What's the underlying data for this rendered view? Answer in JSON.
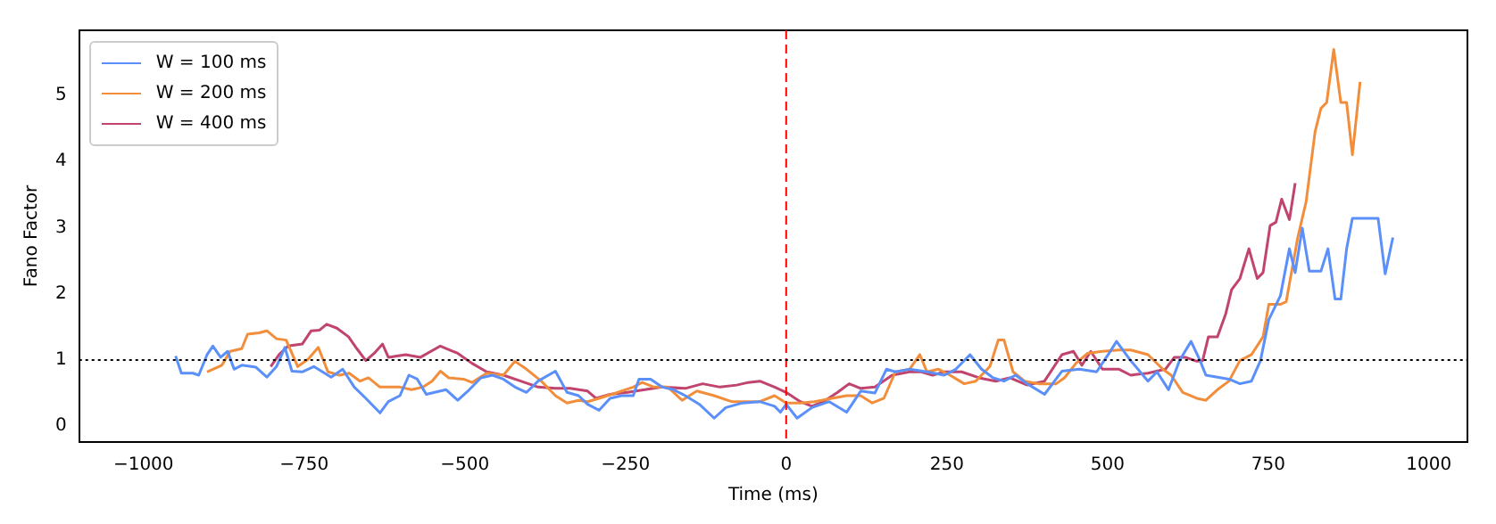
{
  "chart_data": {
    "type": "line",
    "xlabel": "Time (ms)",
    "ylabel": "Fano Factor",
    "xlim": [
      -1100,
      1060
    ],
    "xticks": [
      -1000,
      -750,
      -500,
      -250,
      0,
      250,
      500,
      750,
      1000
    ],
    "ylim": [
      -0.24,
      5.98
    ],
    "yticks": [
      0,
      1,
      2,
      3,
      4,
      5
    ],
    "legend": "top left",
    "marker": "none",
    "line_style": "solid",
    "ref_lines": [
      {
        "axis": "x",
        "value": 0,
        "color": "#ff0000",
        "line_style": "dashed"
      },
      {
        "axis": "y",
        "value": 1,
        "color": "#000000",
        "line_style": "dotted"
      }
    ],
    "series": [
      {
        "name": "W = 100 ms",
        "color": "#5b8ff9",
        "x": [
          -950,
          -941,
          -923,
          -914,
          -901,
          -892,
          -880,
          -869,
          -859,
          -847,
          -825,
          -808,
          -793,
          -780,
          -769,
          -753,
          -735,
          -708,
          -690,
          -672,
          -654,
          -632,
          -619,
          -601,
          -587,
          -574,
          -560,
          -547,
          -529,
          -511,
          -493,
          -475,
          -457,
          -440,
          -422,
          -404,
          -386,
          -359,
          -341,
          -323,
          -309,
          -291,
          -274,
          -256,
          -238,
          -229,
          -211,
          -193,
          -175,
          -157,
          -135,
          -112,
          -94,
          -68,
          -41,
          -18,
          -9,
          0,
          17,
          40,
          67,
          94,
          116,
          138,
          156,
          170,
          192,
          219,
          246,
          264,
          286,
          304,
          322,
          339,
          357,
          375,
          402,
          429,
          456,
          483,
          501,
          514,
          536,
          563,
          577,
          595,
          612,
          630,
          644,
          653,
          689,
          706,
          724,
          738,
          751,
          769,
          783,
          792,
          803,
          814,
          832,
          843,
          854,
          863,
          872,
          881,
          921,
          932,
          944
        ],
        "values": [
          1.06,
          0.8,
          0.8,
          0.77,
          1.08,
          1.21,
          1.04,
          1.13,
          0.86,
          0.92,
          0.89,
          0.74,
          0.9,
          1.19,
          0.83,
          0.82,
          0.9,
          0.74,
          0.86,
          0.59,
          0.42,
          0.2,
          0.37,
          0.46,
          0.77,
          0.71,
          0.48,
          0.51,
          0.55,
          0.39,
          0.55,
          0.73,
          0.77,
          0.71,
          0.59,
          0.51,
          0.68,
          0.83,
          0.51,
          0.46,
          0.33,
          0.24,
          0.42,
          0.46,
          0.46,
          0.71,
          0.71,
          0.59,
          0.55,
          0.46,
          0.33,
          0.12,
          0.28,
          0.35,
          0.37,
          0.3,
          0.21,
          0.33,
          0.12,
          0.28,
          0.37,
          0.21,
          0.53,
          0.5,
          0.86,
          0.82,
          0.86,
          0.82,
          0.77,
          0.86,
          1.08,
          0.86,
          0.73,
          0.68,
          0.77,
          0.64,
          0.48,
          0.83,
          0.86,
          0.82,
          1.08,
          1.28,
          0.99,
          0.68,
          0.82,
          0.55,
          0.99,
          1.28,
          0.99,
          0.77,
          0.71,
          0.64,
          0.68,
          0.99,
          1.61,
          1.97,
          2.68,
          2.32,
          2.99,
          2.34,
          2.34,
          2.68,
          1.92,
          1.92,
          2.68,
          3.14,
          3.14,
          2.3,
          2.85
        ]
      },
      {
        "name": "W = 200 ms",
        "color": "#f28e3b",
        "x": [
          -901,
          -878,
          -865,
          -847,
          -838,
          -820,
          -808,
          -793,
          -778,
          -760,
          -744,
          -728,
          -713,
          -695,
          -680,
          -663,
          -650,
          -632,
          -601,
          -583,
          -565,
          -551,
          -538,
          -525,
          -502,
          -489,
          -466,
          -440,
          -422,
          -404,
          -381,
          -359,
          -341,
          -323,
          -309,
          -291,
          -265,
          -238,
          -224,
          -206,
          -184,
          -162,
          -139,
          -112,
          -85,
          -63,
          -41,
          -18,
          0,
          22,
          44,
          71,
          94,
          116,
          134,
          152,
          170,
          192,
          208,
          219,
          237,
          255,
          277,
          295,
          317,
          330,
          339,
          353,
          371,
          393,
          420,
          433,
          451,
          469,
          492,
          518,
          536,
          563,
          586,
          599,
          617,
          639,
          653,
          671,
          689,
          706,
          724,
          742,
          751,
          769,
          778,
          796,
          809,
          823,
          832,
          841,
          852,
          863,
          872,
          881,
          893
        ],
        "values": [
          0.82,
          0.92,
          1.13,
          1.17,
          1.39,
          1.41,
          1.44,
          1.32,
          1.3,
          0.9,
          1.01,
          1.19,
          0.82,
          0.77,
          0.8,
          0.68,
          0.73,
          0.59,
          0.59,
          0.55,
          0.59,
          0.68,
          0.83,
          0.73,
          0.71,
          0.66,
          0.8,
          0.77,
          0.98,
          0.86,
          0.68,
          0.46,
          0.35,
          0.39,
          0.37,
          0.42,
          0.5,
          0.59,
          0.66,
          0.59,
          0.59,
          0.39,
          0.53,
          0.46,
          0.37,
          0.37,
          0.37,
          0.46,
          0.35,
          0.35,
          0.37,
          0.42,
          0.46,
          0.46,
          0.35,
          0.42,
          0.82,
          0.86,
          1.08,
          0.82,
          0.86,
          0.77,
          0.64,
          0.68,
          0.9,
          1.3,
          1.3,
          0.82,
          0.68,
          0.64,
          0.64,
          0.73,
          0.95,
          1.1,
          1.13,
          1.15,
          1.15,
          1.08,
          0.86,
          0.77,
          0.51,
          0.42,
          0.39,
          0.55,
          0.68,
          0.99,
          1.08,
          1.35,
          1.84,
          1.84,
          1.88,
          2.85,
          3.39,
          4.45,
          4.8,
          4.89,
          5.69,
          4.89,
          4.89,
          4.1,
          5.2
        ]
      },
      {
        "name": "W = 400 ms",
        "color": "#c0446e",
        "x": [
          -802,
          -789,
          -775,
          -753,
          -739,
          -726,
          -715,
          -699,
          -681,
          -668,
          -654,
          -641,
          -628,
          -619,
          -592,
          -569,
          -538,
          -511,
          -489,
          -466,
          -440,
          -413,
          -386,
          -359,
          -336,
          -309,
          -296,
          -274,
          -247,
          -220,
          -193,
          -157,
          -130,
          -103,
          -77,
          -59,
          -41,
          -18,
          0,
          22,
          40,
          58,
          80,
          98,
          116,
          138,
          165,
          192,
          210,
          228,
          246,
          273,
          300,
          326,
          348,
          375,
          402,
          429,
          447,
          460,
          474,
          492,
          518,
          536,
          563,
          590,
          604,
          621,
          639,
          648,
          657,
          671,
          684,
          693,
          706,
          720,
          733,
          742,
          753,
          762,
          771,
          783,
          792
        ],
        "values": [
          0.9,
          1.08,
          1.21,
          1.24,
          1.44,
          1.45,
          1.54,
          1.48,
          1.35,
          1.17,
          0.99,
          1.1,
          1.24,
          1.04,
          1.08,
          1.04,
          1.21,
          1.1,
          0.95,
          0.82,
          0.77,
          0.68,
          0.59,
          0.57,
          0.57,
          0.53,
          0.42,
          0.48,
          0.51,
          0.55,
          0.59,
          0.57,
          0.64,
          0.59,
          0.62,
          0.66,
          0.68,
          0.59,
          0.51,
          0.37,
          0.3,
          0.37,
          0.51,
          0.64,
          0.57,
          0.59,
          0.77,
          0.82,
          0.82,
          0.77,
          0.82,
          0.82,
          0.73,
          0.68,
          0.73,
          0.62,
          0.68,
          1.08,
          1.13,
          0.92,
          1.13,
          0.86,
          0.86,
          0.77,
          0.8,
          0.86,
          1.04,
          1.04,
          0.98,
          0.99,
          1.35,
          1.35,
          1.7,
          2.06,
          2.23,
          2.68,
          2.23,
          2.32,
          3.03,
          3.08,
          3.43,
          3.12,
          3.67
        ]
      }
    ]
  }
}
